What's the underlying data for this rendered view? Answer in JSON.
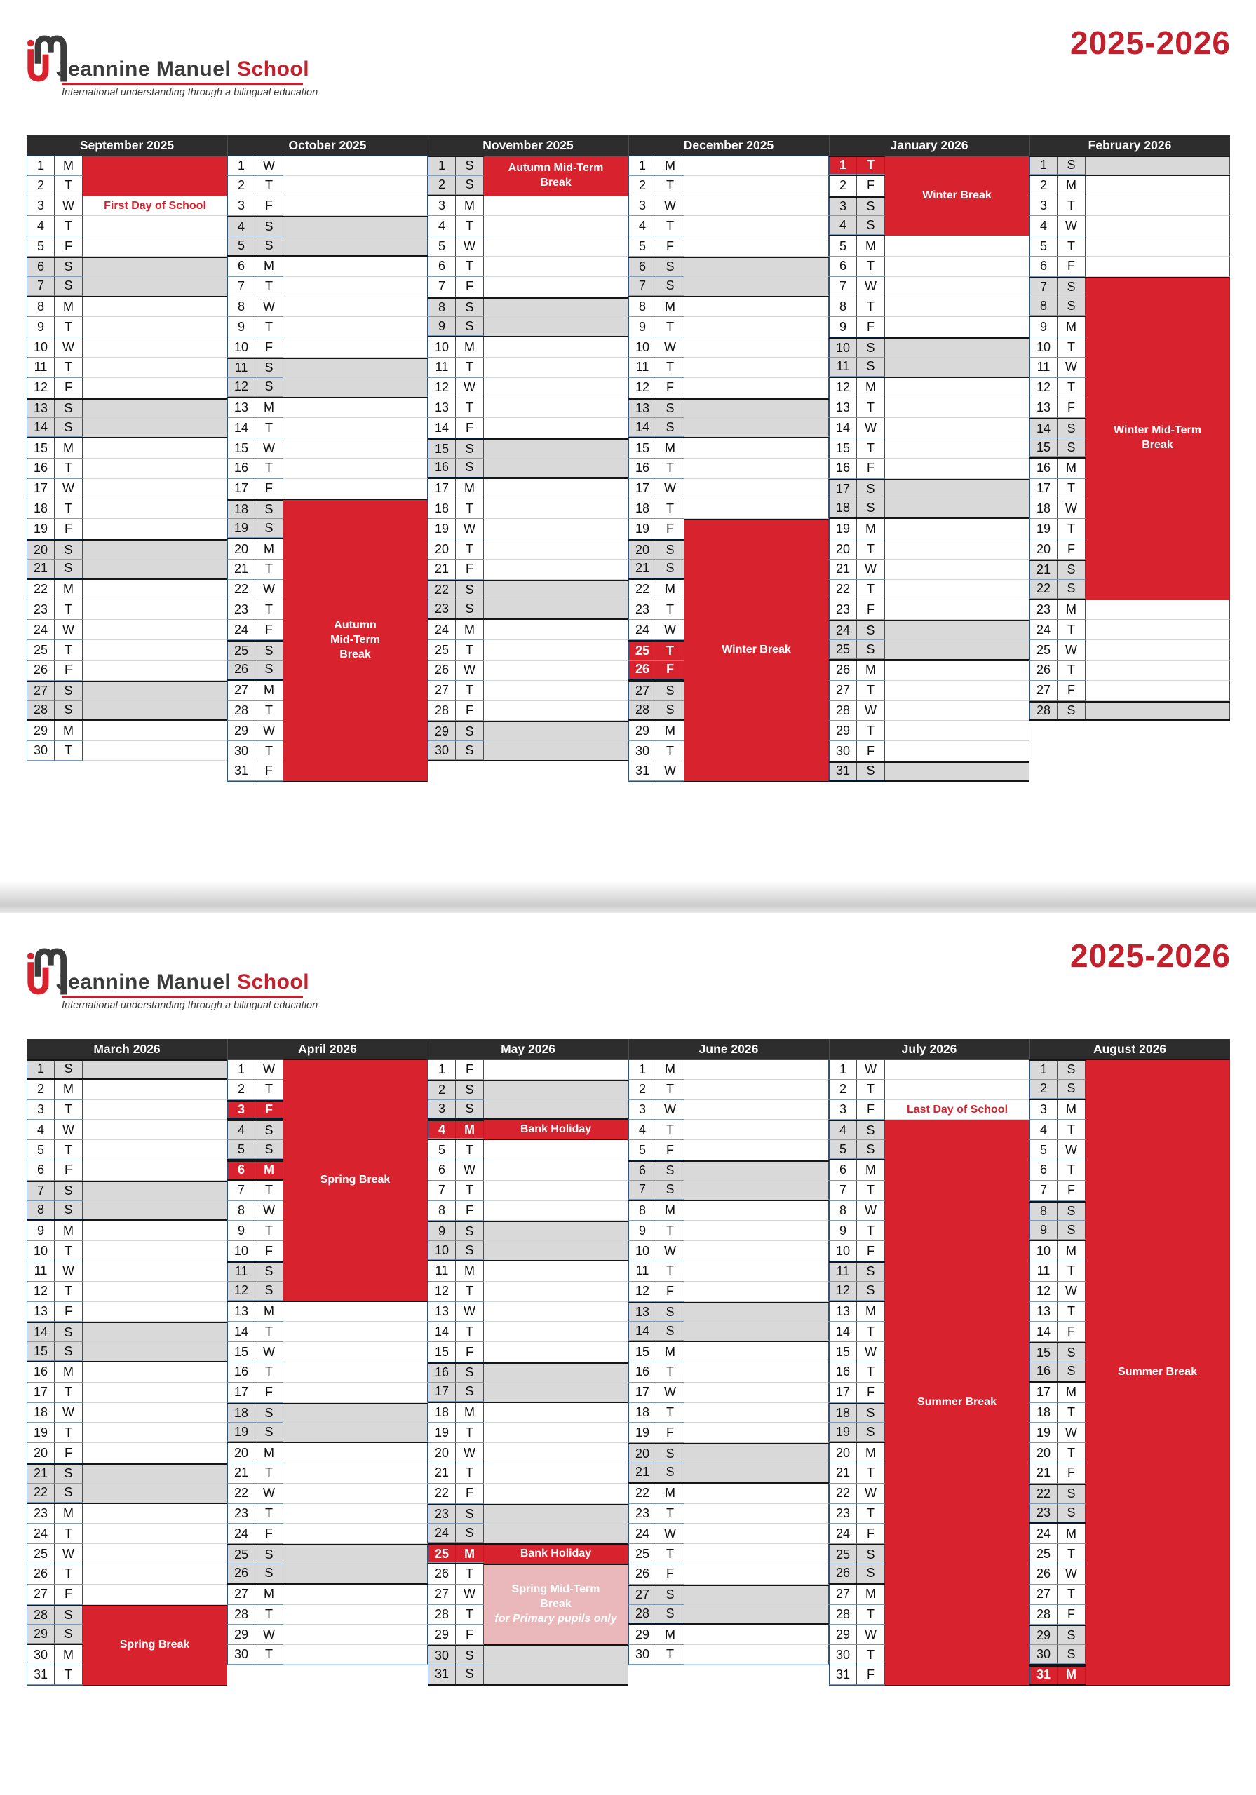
{
  "year_label": "2025-2026",
  "branding": {
    "name_dark": "Jeannine Manuel",
    "name_red": "School",
    "tagline": "International understanding through a bilingual education"
  },
  "calendar": {
    "dow_letters": [
      "M",
      "T",
      "W",
      "T",
      "F",
      "S",
      "S"
    ],
    "colors": {
      "red": "#d8232f",
      "pink": "#eab8bb",
      "weekend_gray": "#d9d9d9",
      "header_dark": "#2d2d2d",
      "title_red": "#c3202e",
      "border_navy": "#2e5380"
    },
    "pages": [
      {
        "months": [
          {
            "name": "September 2025",
            "days": 30,
            "first_dow": 0,
            "holidays": [],
            "blocks": [
              {
                "from": 1,
                "to": 2,
                "lines": [],
                "style": "red"
              }
            ],
            "notes": [
              {
                "day": 3,
                "text": "First Day of School"
              }
            ]
          },
          {
            "name": "October 2025",
            "days": 31,
            "first_dow": 2,
            "holidays": [],
            "blocks": [
              {
                "from": 18,
                "to": 31,
                "lines": [
                  "Autumn",
                  "Mid-Term",
                  "Break"
                ],
                "style": "red"
              }
            ],
            "notes": []
          },
          {
            "name": "November 2025",
            "days": 30,
            "first_dow": 5,
            "holidays": [],
            "blocks": [
              {
                "from": 1,
                "to": 2,
                "lines": [
                  "Autumn Mid-Term",
                  "Break"
                ],
                "style": "red"
              }
            ],
            "notes": []
          },
          {
            "name": "December 2025",
            "days": 31,
            "first_dow": 0,
            "holidays": [
              25,
              26
            ],
            "blocks": [
              {
                "from": 19,
                "to": 31,
                "lines": [
                  "Winter Break"
                ],
                "style": "red"
              }
            ],
            "notes": []
          },
          {
            "name": "January 2026",
            "days": 31,
            "first_dow": 3,
            "holidays": [
              1
            ],
            "blocks": [
              {
                "from": 1,
                "to": 4,
                "lines": [
                  "Winter Break"
                ],
                "style": "red"
              }
            ],
            "notes": []
          },
          {
            "name": "February 2026",
            "days": 28,
            "first_dow": 6,
            "holidays": [],
            "blocks": [
              {
                "from": 7,
                "to": 22,
                "lines": [
                  "Winter Mid-Term",
                  "Break"
                ],
                "style": "red"
              }
            ],
            "notes": []
          }
        ]
      },
      {
        "months": [
          {
            "name": "March 2026",
            "days": 31,
            "first_dow": 6,
            "holidays": [],
            "blocks": [
              {
                "from": 28,
                "to": 31,
                "lines": [
                  "Spring Break"
                ],
                "style": "red"
              }
            ],
            "notes": []
          },
          {
            "name": "April 2026",
            "days": 30,
            "first_dow": 2,
            "holidays": [
              3,
              6
            ],
            "blocks": [
              {
                "from": 1,
                "to": 12,
                "lines": [
                  "Spring Break"
                ],
                "style": "red"
              }
            ],
            "notes": []
          },
          {
            "name": "May 2026",
            "days": 31,
            "first_dow": 4,
            "holidays": [
              4,
              25
            ],
            "blocks": [
              {
                "from": 4,
                "to": 4,
                "lines": [
                  "Bank Holiday"
                ],
                "style": "red"
              },
              {
                "from": 25,
                "to": 25,
                "lines": [
                  "Bank Holiday"
                ],
                "style": "red"
              },
              {
                "from": 26,
                "to": 29,
                "lines": [
                  "Spring Mid-Term",
                  "Break",
                  "for Primary pupils only"
                ],
                "style": "pink",
                "italic_last": true
              }
            ],
            "notes": []
          },
          {
            "name": "June 2026",
            "days": 30,
            "first_dow": 0,
            "holidays": [],
            "blocks": [],
            "notes": []
          },
          {
            "name": "July 2026",
            "days": 31,
            "first_dow": 2,
            "holidays": [],
            "blocks": [
              {
                "from": 4,
                "to": 31,
                "lines": [
                  "Summer Break"
                ],
                "style": "red"
              }
            ],
            "notes": [
              {
                "day": 3,
                "text": "Last Day of School"
              }
            ]
          },
          {
            "name": "August 2026",
            "days": 31,
            "first_dow": 5,
            "holidays": [
              31
            ],
            "blocks": [
              {
                "from": 1,
                "to": 31,
                "lines": [
                  "Summer Break"
                ],
                "style": "red"
              }
            ],
            "notes": []
          }
        ]
      }
    ]
  }
}
